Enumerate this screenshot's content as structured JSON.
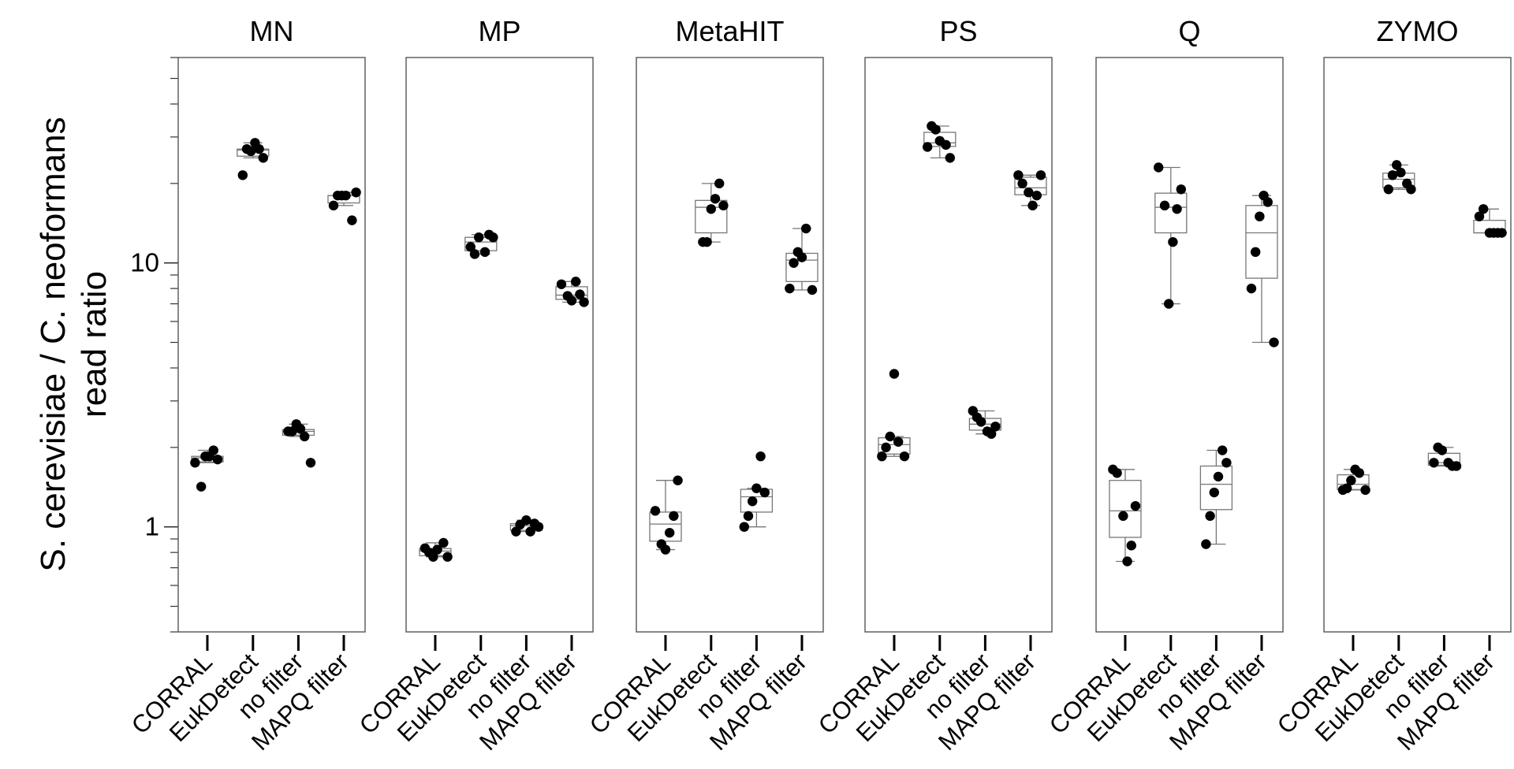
{
  "chart_data": {
    "type": "boxplot",
    "ylabel_lines": [
      "S. cerevisiae / C. neoformans",
      "read ratio"
    ],
    "y_scale": "log",
    "ylim": [
      0.4,
      60
    ],
    "yticks": [
      1,
      10
    ],
    "yticklabels": [
      "1",
      "10"
    ],
    "categories": [
      "CORRAL",
      "EukDetect",
      "no filter",
      "MAPQ filter"
    ],
    "grid": false,
    "panels": [
      {
        "title": "MN",
        "groups": [
          {
            "category": "CORRAL",
            "points": [
              1.75,
              1.8,
              1.95,
              1.85,
              1.85,
              1.42
            ]
          },
          {
            "category": "EukDetect",
            "points": [
              25,
              27,
              28.5,
              26.5,
              27,
              21.5
            ]
          },
          {
            "category": "no filter",
            "points": [
              2.2,
              2.35,
              2.45,
              2.3,
              2.3,
              1.75
            ]
          },
          {
            "category": "MAPQ filter",
            "points": [
              18,
              18,
              18,
              16.5,
              18.5,
              14.5
            ]
          }
        ]
      },
      {
        "title": "MP",
        "groups": [
          {
            "category": "CORRAL",
            "points": [
              0.82,
              0.77,
              0.8,
              0.83,
              0.77,
              0.87
            ]
          },
          {
            "category": "EukDetect",
            "points": [
              12.5,
              10.8,
              11.5,
              12.5,
              12.8,
              11
            ]
          },
          {
            "category": "no filter",
            "points": [
              1.02,
              0.96,
              1.0,
              1.03,
              0.96,
              1.06
            ]
          },
          {
            "category": "MAPQ filter",
            "points": [
              8.3,
              7.1,
              7.6,
              8.5,
              7.2,
              7.5
            ]
          }
        ]
      },
      {
        "title": "MetaHIT",
        "groups": [
          {
            "category": "CORRAL",
            "points": [
              1.15,
              1.5,
              1.1,
              0.95,
              0.82,
              0.86
            ]
          },
          {
            "category": "EukDetect",
            "points": [
              16.5,
              20,
              17.5,
              16,
              12,
              12
            ]
          },
          {
            "category": "no filter",
            "points": [
              1.35,
              1.85,
              1.4,
              1.25,
              1.1,
              1.0
            ]
          },
          {
            "category": "MAPQ filter",
            "points": [
              13.5,
              10.5,
              11,
              10,
              8,
              7.9
            ]
          }
        ]
      },
      {
        "title": "PS",
        "groups": [
          {
            "category": "CORRAL",
            "points": [
              2.1,
              3.8,
              2.2,
              2.0,
              1.85,
              1.85
            ]
          },
          {
            "category": "EukDetect",
            "points": [
              29,
              32,
              33,
              27.5,
              25,
              28
            ]
          },
          {
            "category": "no filter",
            "points": [
              2.5,
              2.6,
              2.75,
              2.4,
              2.25,
              2.3
            ]
          },
          {
            "category": "MAPQ filter",
            "points": [
              20,
              21.5,
              21.5,
              18,
              16.5,
              18.5
            ]
          }
        ]
      },
      {
        "title": "Q",
        "groups": [
          {
            "category": "CORRAL",
            "points": [
              1.6,
              1.65,
              1.2,
              0.85,
              0.74,
              1.1
            ]
          },
          {
            "category": "EukDetect",
            "points": [
              23,
              19,
              16,
              12,
              7,
              16.5
            ]
          },
          {
            "category": "no filter",
            "points": [
              1.75,
              1.95,
              1.55,
              1.35,
              1.1,
              0.86
            ]
          },
          {
            "category": "MAPQ filter",
            "points": [
              17,
              18,
              15,
              11,
              8,
              5
            ]
          }
        ]
      },
      {
        "title": "ZYMO",
        "groups": [
          {
            "category": "CORRAL",
            "points": [
              1.6,
              1.65,
              1.5,
              1.4,
              1.38,
              1.38
            ]
          },
          {
            "category": "EukDetect",
            "points": [
              22,
              23.5,
              21.5,
              19,
              19,
              20
            ]
          },
          {
            "category": "no filter",
            "points": [
              1.95,
              2.0,
              1.75,
              1.7,
              1.7,
              1.75
            ]
          },
          {
            "category": "MAPQ filter",
            "points": [
              16,
              15,
              13,
              13,
              13,
              13
            ]
          }
        ]
      }
    ]
  }
}
